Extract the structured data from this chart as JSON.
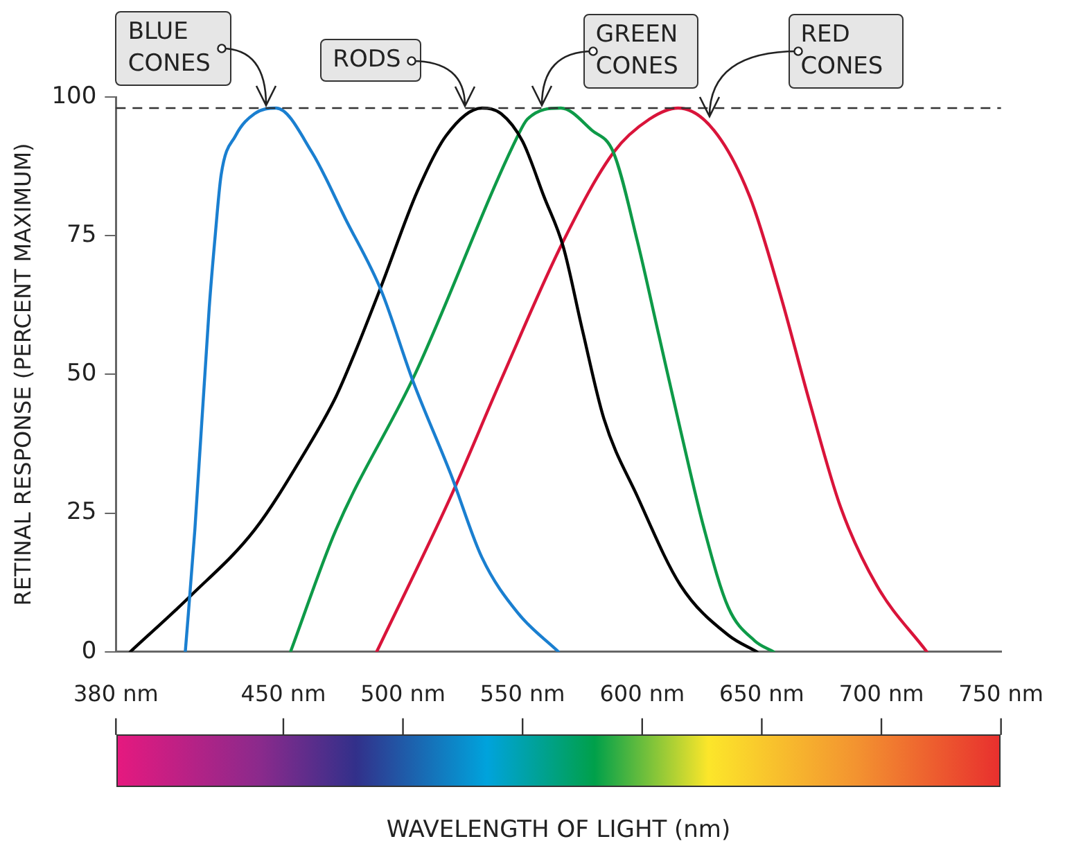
{
  "chart_data": {
    "type": "line",
    "xlabel": "WAVELENGTH OF LIGHT (nm)",
    "ylabel": "RETINAL RESPONSE (PERCENT MAXIMUM)",
    "xlim": [
      380,
      750
    ],
    "xticks": [
      {
        "value": 380,
        "label": "380 nm"
      },
      {
        "value": 450,
        "label": "450 nm"
      },
      {
        "value": 500,
        "label": "500 nm"
      },
      {
        "value": 550,
        "label": "550 nm"
      },
      {
        "value": 600,
        "label": "600 nm"
      },
      {
        "value": 650,
        "label": "650 nm"
      },
      {
        "value": 700,
        "label": "700 nm"
      },
      {
        "value": 750,
        "label": "750 nm"
      }
    ],
    "ylim": [
      0,
      100
    ],
    "yticks": [
      0,
      25,
      50,
      75,
      100
    ],
    "grid": false,
    "legend": false,
    "marker": "none",
    "line_style": "solid",
    "series": [
      {
        "color": "#1a7fd0",
        "x": [
          409,
          413,
          419,
          421.5,
          424,
          430,
          438,
          447,
          462,
          476,
          491,
          504,
          520,
          533,
          548,
          565
        ],
        "values": [
          0,
          22,
          62,
          75,
          86,
          93,
          97,
          98,
          90,
          78,
          65,
          49,
          32,
          17,
          7,
          0
        ]
      },
      {
        "color": "#000000",
        "x": [
          386,
          411,
          438,
          459,
          472,
          480,
          491,
          506,
          518,
          533,
          541,
          550,
          559,
          567,
          575,
          584,
          598,
          616,
          636,
          648
        ],
        "values": [
          0,
          10,
          22,
          36,
          46,
          54,
          66,
          83,
          93,
          98,
          97,
          92,
          82,
          73,
          58,
          42,
          28,
          12,
          3,
          0
        ]
      },
      {
        "color": "#0e9a48",
        "x": [
          453,
          472,
          505,
          548,
          552,
          566,
          579,
          588,
          598,
          607,
          616,
          626,
          636,
          647,
          655
        ],
        "values": [
          0,
          22,
          50,
          93,
          96,
          98,
          94,
          90,
          74,
          57,
          40,
          22,
          8,
          2,
          0
        ]
      },
      {
        "color": "#d9143a",
        "x": [
          489,
          520,
          541,
          567,
          588,
          603,
          615,
          630,
          645,
          658,
          670,
          683,
          698,
          719
        ],
        "values": [
          0,
          28,
          49,
          74,
          90,
          96,
          98,
          94,
          82,
          64,
          45,
          26,
          12,
          0
        ]
      }
    ],
    "ref_lines": [
      {
        "axis": "y",
        "value": 98,
        "color": "#333333",
        "line_style": "dashed"
      }
    ],
    "annotations": [
      {
        "text": "BLUE CONES",
        "x": 443,
        "y": 98
      },
      {
        "text": "RODS",
        "x": 526,
        "y": 98
      },
      {
        "text": "GREEN CONES",
        "x": 558,
        "y": 98
      },
      {
        "text": "RED CONES",
        "x": 628,
        "y": 96
      }
    ]
  }
}
